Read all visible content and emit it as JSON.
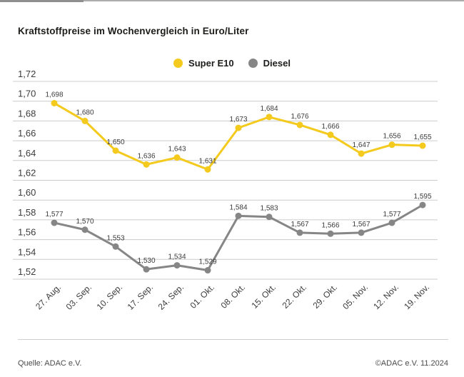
{
  "chart_data": {
    "type": "line",
    "title": "Kraftstoffpreise im Wochenvergleich in Euro/Liter",
    "unit": "Euro/Liter",
    "categories": [
      "27. Aug.",
      "03. Sep.",
      "10. Sep.",
      "17. Sep.",
      "24. Sep.",
      "01. Okt.",
      "08. Okt.",
      "15. Okt.",
      "22. Okt.",
      "29. Okt.",
      "05. Nov.",
      "12. Nov.",
      "19. Nov."
    ],
    "series": [
      {
        "name": "Super E10",
        "color": "#F3CA1D",
        "values": [
          1.698,
          1.68,
          1.65,
          1.636,
          1.643,
          1.631,
          1.673,
          1.684,
          1.676,
          1.666,
          1.647,
          1.656,
          1.655
        ]
      },
      {
        "name": "Diesel",
        "color": "#868686",
        "values": [
          1.577,
          1.57,
          1.553,
          1.53,
          1.534,
          1.529,
          1.584,
          1.583,
          1.567,
          1.566,
          1.567,
          1.577,
          1.595
        ]
      }
    ],
    "ylim": [
      1.52,
      1.72
    ],
    "ytick_step": 0.02,
    "grid": true,
    "legend_position": "top-center",
    "decimal_separator": ",",
    "value_labels": true,
    "value_decimals": 3,
    "ytick_decimals": 2,
    "grid_color": "#cccccc",
    "text_color": "#3c3c3c"
  },
  "footer": {
    "source": "Quelle: ADAC e.V.",
    "copyright": "©ADAC e.V. 11.2024"
  }
}
